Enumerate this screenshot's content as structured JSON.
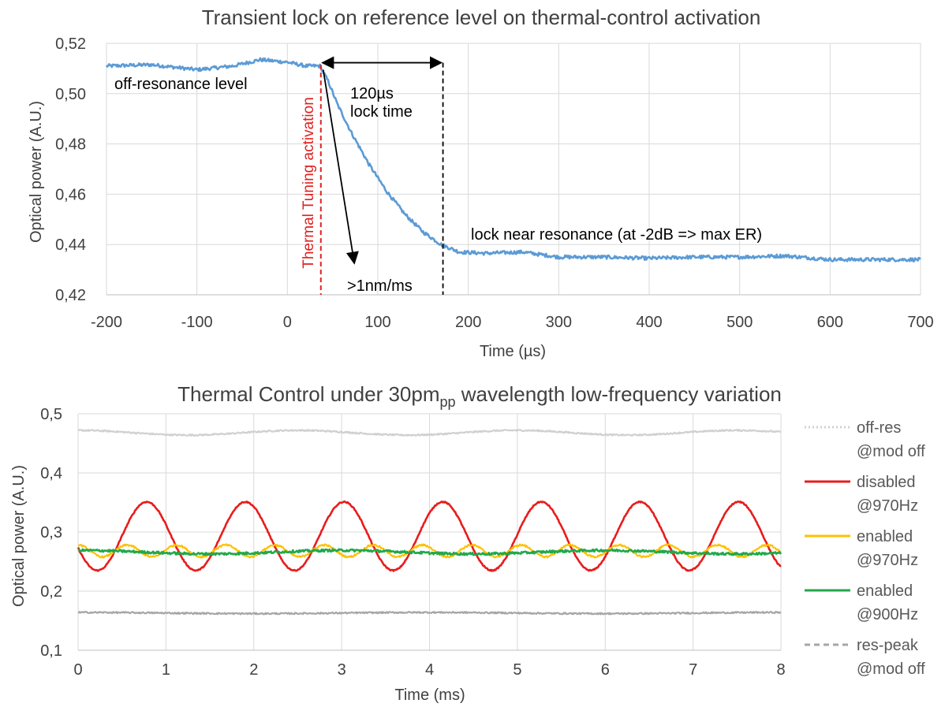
{
  "chart_data": [
    {
      "type": "line",
      "title": "Transient lock on reference level on thermal-control activation",
      "xlabel": "Time (µs)",
      "ylabel": "Optical power (A.U.)",
      "xlim": [
        -200,
        700
      ],
      "ylim": [
        0.42,
        0.52
      ],
      "x_ticks": [
        -200,
        -100,
        0,
        100,
        200,
        300,
        400,
        500,
        600,
        700
      ],
      "x_tick_labels": [
        "-200",
        "-100",
        "0",
        "100",
        "200",
        "300",
        "400",
        "500",
        "600",
        "700"
      ],
      "y_ticks": [
        0.42,
        0.44,
        0.46,
        0.48,
        0.5,
        0.52
      ],
      "y_tick_labels": [
        "0,42",
        "0,44",
        "0,46",
        "0,48",
        "0,50",
        "0,52"
      ],
      "grid": true,
      "series": [
        {
          "color": "#5b9bd5",
          "points": [
            [
              -200,
              0.511
            ],
            [
              -150,
              0.5115
            ],
            [
              -100,
              0.5095
            ],
            [
              -60,
              0.511
            ],
            [
              -30,
              0.5135
            ],
            [
              0,
              0.5125
            ],
            [
              20,
              0.511
            ],
            [
              36,
              0.511
            ],
            [
              45,
              0.505
            ],
            [
              55,
              0.496
            ],
            [
              70,
              0.485
            ],
            [
              90,
              0.472
            ],
            [
              110,
              0.461
            ],
            [
              130,
              0.452
            ],
            [
              150,
              0.445
            ],
            [
              170,
              0.44
            ],
            [
              190,
              0.437
            ],
            [
              220,
              0.4365
            ],
            [
              260,
              0.437
            ],
            [
              300,
              0.435
            ],
            [
              350,
              0.435
            ],
            [
              400,
              0.4345
            ],
            [
              450,
              0.435
            ],
            [
              500,
              0.435
            ],
            [
              550,
              0.4355
            ],
            [
              600,
              0.434
            ],
            [
              650,
              0.434
            ],
            [
              700,
              0.434
            ]
          ]
        }
      ],
      "annotations": {
        "off_resonance": "off-resonance level",
        "lock_time_value": "120µs",
        "lock_time_label": "lock time",
        "thermal_activation": "Thermal Tuning activation",
        "slope": ">1nm/ms",
        "lock_near": "lock near resonance (at -2dB => max ER)"
      },
      "markers": {
        "activation_x": 37,
        "lock_end_x": 172
      }
    },
    {
      "type": "line",
      "title_main": "Thermal Control under 30pm",
      "title_sub": "pp",
      "title_rest": " wavelength low-frequency variation",
      "xlabel": "Time (ms)",
      "ylabel": "Optical power (A.U.)",
      "xlim": [
        0,
        8
      ],
      "ylim": [
        0.1,
        0.5
      ],
      "x_ticks": [
        0,
        1,
        2,
        3,
        4,
        5,
        6,
        7,
        8
      ],
      "x_tick_labels": [
        "0",
        "1",
        "2",
        "3",
        "4",
        "5",
        "6",
        "7",
        "8"
      ],
      "y_ticks": [
        0.1,
        0.2,
        0.3,
        0.4,
        0.5
      ],
      "y_tick_labels": [
        "0,1",
        "0,2",
        "0,3",
        "0,4",
        "0,5"
      ],
      "grid": true,
      "legend_position": "right",
      "series": [
        {
          "name_line1": "off-res",
          "name_line2": "@mod off",
          "color": "#d0d0d0",
          "style": "dotted",
          "base": 0.468,
          "amplitude": 0.004,
          "period_ms": 2.5
        },
        {
          "name_line1": "disabled",
          "name_line2": "@970Hz",
          "color": "#e81c1c",
          "style": "solid",
          "base": 0.293,
          "amplitude": 0.058,
          "period_ms": 1.123,
          "phase_peak_ms": 0.78
        },
        {
          "name_line1": "enabled",
          "name_line2": "@970Hz",
          "color": "#ffc000",
          "style": "solid",
          "base": 0.268,
          "amplitude": 0.01,
          "period_ms": 0.56
        },
        {
          "name_line1": "enabled",
          "name_line2": "@900Hz",
          "color": "#22a84a",
          "style": "solid",
          "base": 0.266,
          "amplitude": 0.003,
          "period_ms": 3.0
        },
        {
          "name_line1": "res-peak",
          "name_line2": "@mod off",
          "color": "#a6a6a6",
          "style": "dashed",
          "base": 0.163,
          "amplitude": 0.001,
          "period_ms": 4.0
        }
      ]
    }
  ]
}
